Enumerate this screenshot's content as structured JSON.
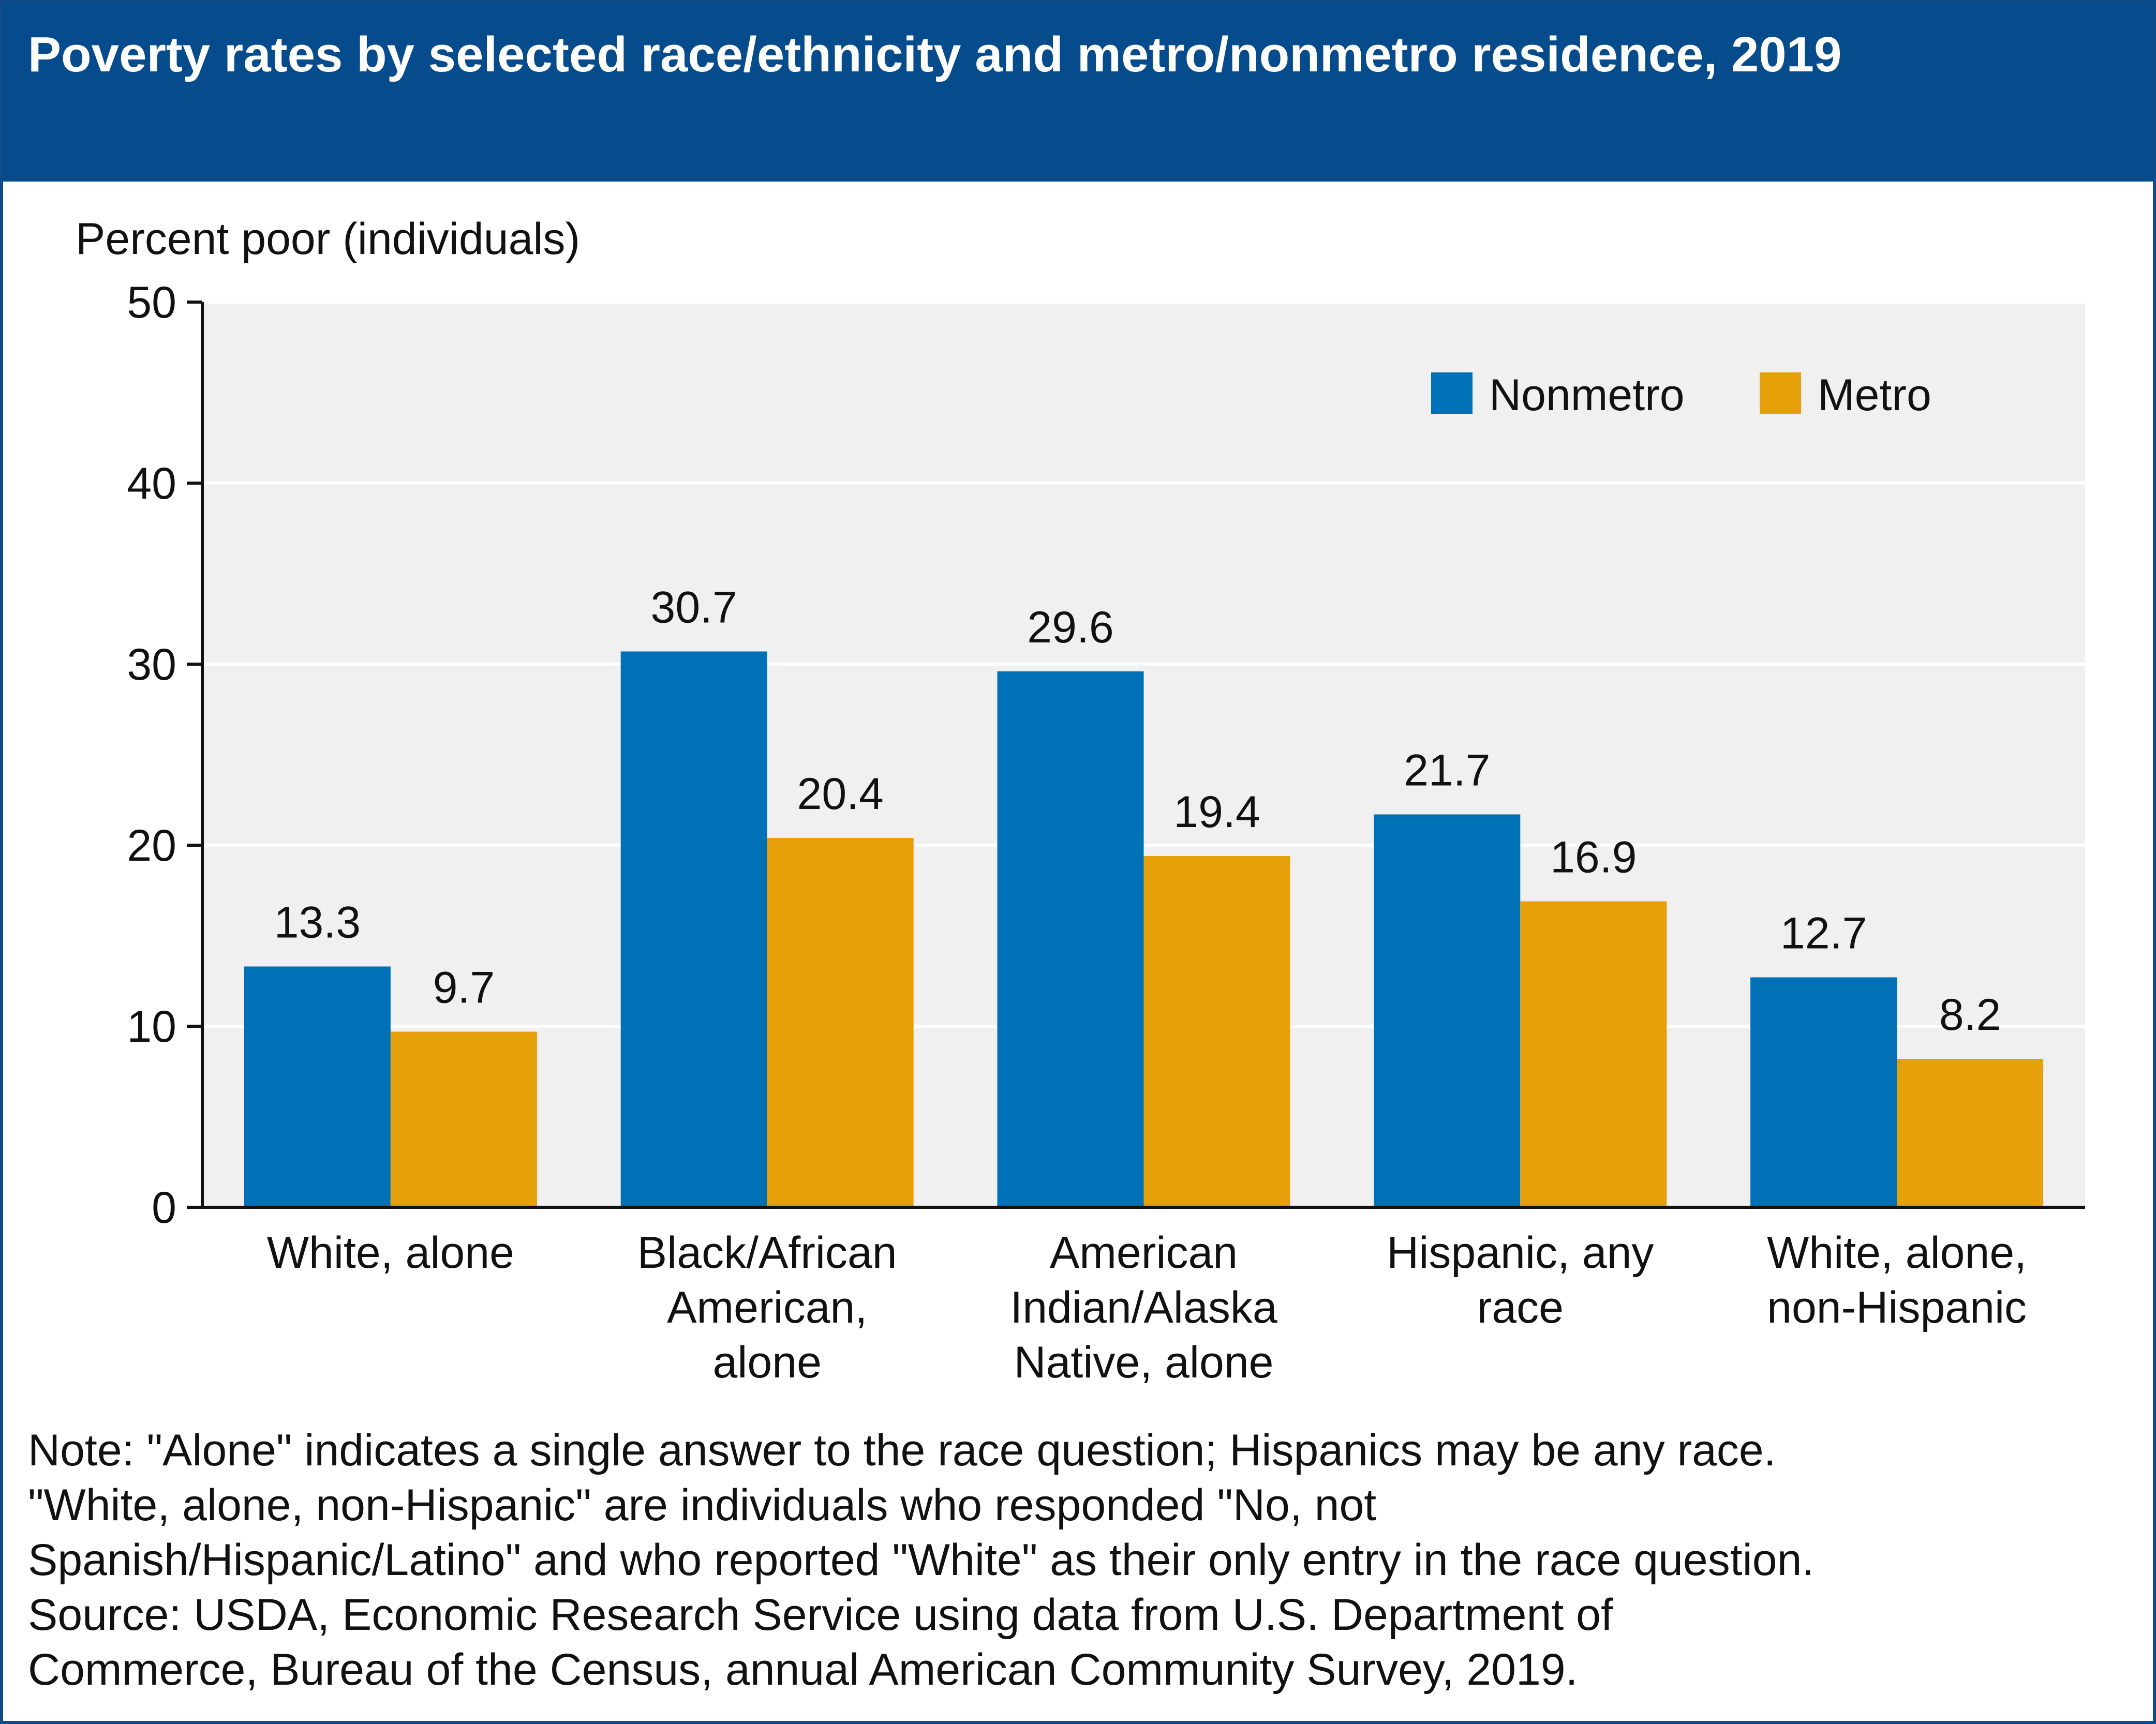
{
  "title": "Poverty rates by selected race/ethnicity and metro/nonmetro residence, 2019",
  "notes": [
    "Note: \"Alone\" indicates a single answer to the race question; Hispanics may be any race.",
    "\"White, alone, non-Hispanic\" are individuals who responded \"No, not",
    "Spanish/Hispanic/Latino\" and who reported \"White\" as their only entry in the race question.",
    "Source: USDA, Economic Research Service using data from  U.S. Department of",
    "Commerce, Bureau of the Census, annual American Community Survey, 2019."
  ],
  "colors": {
    "header": "#064b8c",
    "nonmetro": "#0071b7",
    "metro": "#e6a00a",
    "plot_bg": "#f0f0f0",
    "gridline": "#ffffff"
  },
  "chart_data": {
    "type": "bar",
    "ylabel": "Percent poor (individuals)",
    "ylim": [
      0,
      50
    ],
    "yticks": [
      0,
      10,
      20,
      30,
      40,
      50
    ],
    "grid": true,
    "legend_position": "top-right",
    "categories": [
      [
        "White, alone"
      ],
      [
        "Black/African",
        "American,",
        "alone"
      ],
      [
        "American",
        "Indian/Alaska",
        "Native, alone"
      ],
      [
        "Hispanic, any",
        "race"
      ],
      [
        "White, alone,",
        "non-Hispanic"
      ]
    ],
    "series": [
      {
        "name": "Nonmetro",
        "color": "#0071b7",
        "values": [
          13.3,
          30.7,
          29.6,
          21.7,
          12.7
        ]
      },
      {
        "name": "Metro",
        "color": "#e6a00a",
        "values": [
          9.7,
          20.4,
          19.4,
          16.9,
          8.2
        ]
      }
    ]
  }
}
